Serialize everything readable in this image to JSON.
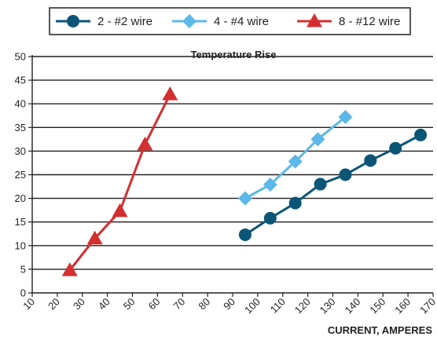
{
  "chart_data": {
    "type": "line",
    "title": "Temperature Rise",
    "xlabel": "CURRENT, AMPERES",
    "ylabel": "",
    "xlim": [
      10,
      170
    ],
    "ylim": [
      0,
      50
    ],
    "xticks": [
      10,
      20,
      30,
      40,
      50,
      60,
      70,
      80,
      90,
      100,
      110,
      120,
      130,
      140,
      150,
      160,
      170
    ],
    "yticks": [
      0,
      5,
      10,
      15,
      20,
      25,
      30,
      35,
      40,
      45,
      50
    ],
    "grid": "horizontal",
    "legend_position": "top",
    "series": [
      {
        "name": "2 - #2 wire",
        "color": "#0b5577",
        "marker": "circle",
        "x": [
          95,
          105,
          115,
          125,
          135,
          145,
          155,
          165
        ],
        "y": [
          12.3,
          15.8,
          19,
          23,
          25,
          28,
          30.6,
          33.4
        ]
      },
      {
        "name": "4 - #4 wire",
        "color": "#5bb8e8",
        "marker": "diamond",
        "x": [
          95,
          105,
          115,
          124,
          135
        ],
        "y": [
          20,
          22.9,
          27.8,
          32.5,
          37.2
        ]
      },
      {
        "name": "8 - #12 wire",
        "color": "#d32f2f",
        "marker": "triangle",
        "x": [
          25,
          35,
          45,
          55,
          65
        ],
        "y": [
          4.8,
          11.5,
          17.3,
          31.4,
          42
        ]
      }
    ]
  }
}
